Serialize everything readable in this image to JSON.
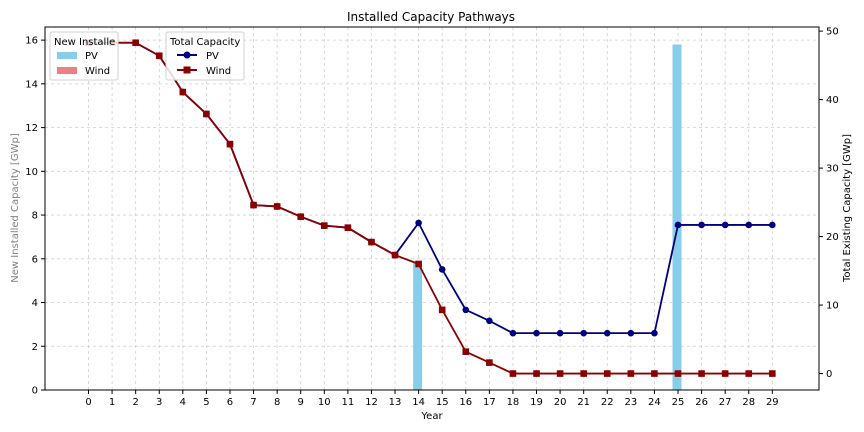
{
  "chart_data": {
    "type": "bar+line",
    "title": "Installed Capacity Pathways",
    "xlabel": "Year",
    "ylabel_left": "New Installed Capacity [GWp]",
    "ylabel_right": "Total Existing Capacity [GWp]",
    "x": [
      0,
      1,
      2,
      3,
      4,
      5,
      6,
      7,
      8,
      9,
      10,
      11,
      12,
      13,
      14,
      15,
      16,
      17,
      18,
      19,
      20,
      21,
      22,
      23,
      24,
      25,
      26,
      27,
      28,
      29
    ],
    "ylim_left": [
      0,
      16.6
    ],
    "ylim_right": [
      -2.4,
      50.6
    ],
    "yticks_left": [
      0,
      2,
      4,
      6,
      8,
      10,
      12,
      14,
      16
    ],
    "yticks_right": [
      0,
      10,
      20,
      30,
      40,
      50
    ],
    "grid": true,
    "bar_series": [
      {
        "name": "PV",
        "color": "#87CEEB",
        "values": [
          0,
          0,
          0,
          0,
          0,
          0,
          0,
          0,
          0,
          0,
          0,
          0,
          0,
          0,
          5.8,
          0,
          0,
          0,
          0,
          0,
          0,
          0,
          0,
          0,
          0,
          15.8,
          0,
          0,
          0,
          0
        ]
      },
      {
        "name": "Wind",
        "color": "#F08080",
        "values": [
          0,
          0,
          0,
          0,
          0,
          0,
          0,
          0,
          0,
          0,
          0,
          0,
          0,
          0,
          0,
          0,
          0,
          0,
          0,
          0,
          0,
          0,
          0,
          0,
          0,
          0,
          0,
          0,
          0,
          0
        ]
      }
    ],
    "line_series": [
      {
        "name": "PV",
        "color": "#000080",
        "marker": "circle",
        "values": [
          48.3,
          48.3,
          48.3,
          46.4,
          41.1,
          37.9,
          33.5,
          24.6,
          24.4,
          22.9,
          21.6,
          21.3,
          19.2,
          17.3,
          22.0,
          15.2,
          9.3,
          7.7,
          5.9,
          5.9,
          5.9,
          5.9,
          5.9,
          5.9,
          5.9,
          21.7,
          21.7,
          21.7,
          21.7,
          21.7
        ]
      },
      {
        "name": "Wind",
        "color": "#8B0000",
        "marker": "square",
        "values": [
          48.3,
          48.3,
          48.3,
          46.4,
          41.1,
          37.9,
          33.5,
          24.6,
          24.4,
          22.9,
          21.6,
          21.3,
          19.2,
          17.3,
          16.0,
          9.3,
          3.2,
          1.6,
          0.0,
          0.0,
          0.0,
          0.0,
          0.0,
          0.0,
          0.0,
          0.0,
          0.0,
          0.0,
          0.0,
          0.0
        ]
      }
    ],
    "legend_new": {
      "title": "New Installe",
      "position": "top-left",
      "items": [
        "PV",
        "Wind"
      ]
    },
    "legend_total": {
      "title": "Total Capacity",
      "position": "top-left",
      "items": [
        "PV",
        "Wind"
      ]
    }
  }
}
